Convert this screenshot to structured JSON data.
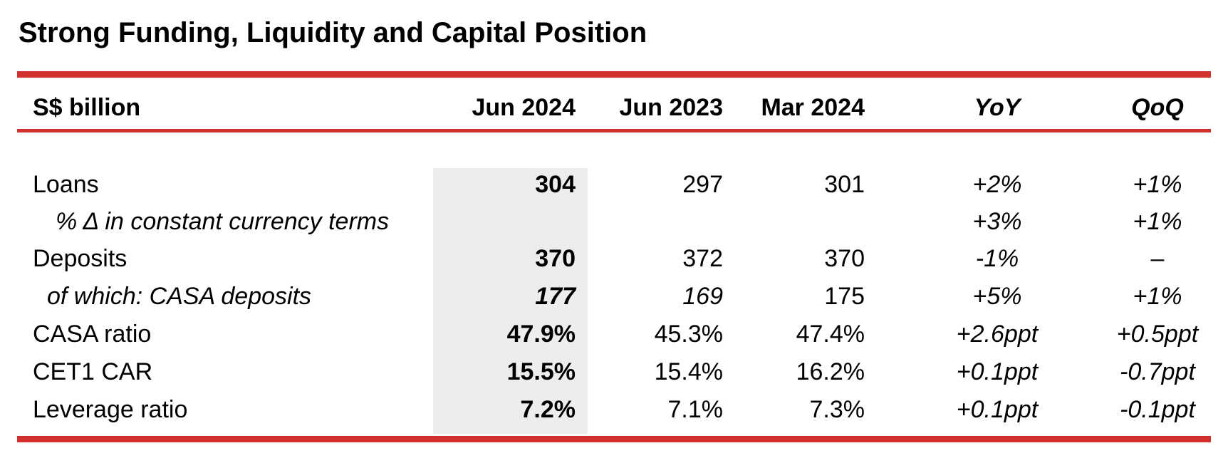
{
  "title": "Strong Funding, Liquidity and Capital Position",
  "colors": {
    "accent_red": "#d0312d",
    "highlight_gray": "#ededed"
  },
  "table": {
    "headers": {
      "label": "S$ billion",
      "jun2024": "Jun 2024",
      "jun2023": "Jun 2023",
      "mar2024": "Mar 2024",
      "yoy": "YoY",
      "qoq": "QoQ"
    },
    "rows": [
      {
        "label": "Loans",
        "jun2024": "304",
        "jun2023": "297",
        "mar2024": "301",
        "yoy": "+2%",
        "qoq": "+1%"
      },
      {
        "label": "% Δ in constant currency terms",
        "jun2024": "",
        "jun2023": "",
        "mar2024": "",
        "yoy": "+3%",
        "qoq": "+1%"
      },
      {
        "label": "Deposits",
        "jun2024": "370",
        "jun2023": "372",
        "mar2024": "370",
        "yoy": "-1%",
        "qoq": "–"
      },
      {
        "label": "of which: CASA deposits",
        "jun2024": "177",
        "jun2023": "169",
        "mar2024": "175",
        "yoy": "+5%",
        "qoq": "+1%"
      },
      {
        "label": "CASA ratio",
        "jun2024": "47.9%",
        "jun2023": "45.3%",
        "mar2024": "47.4%",
        "yoy": "+2.6ppt",
        "qoq": "+0.5ppt"
      },
      {
        "label": "CET1 CAR",
        "jun2024": "15.5%",
        "jun2023": "15.4%",
        "mar2024": "16.2%",
        "yoy": "+0.1ppt",
        "qoq": "-0.7ppt"
      },
      {
        "label": "Leverage ratio",
        "jun2024": "7.2%",
        "jun2023": "7.1%",
        "mar2024": "7.3%",
        "yoy": "+0.1ppt",
        "qoq": "-0.1ppt"
      }
    ]
  }
}
